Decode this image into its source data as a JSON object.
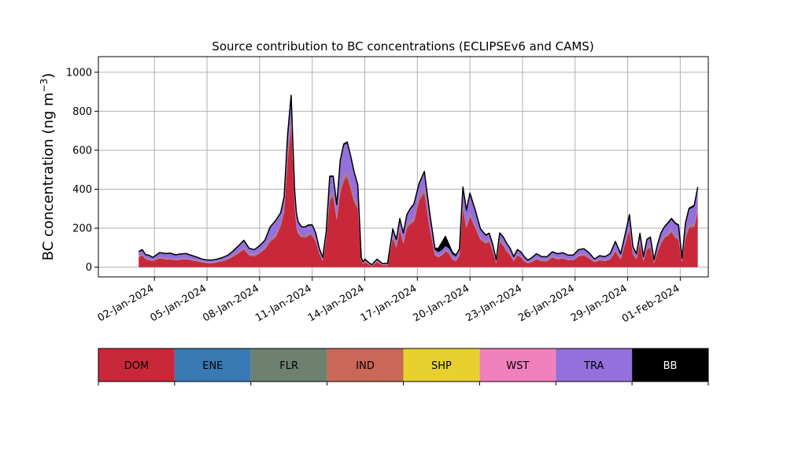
{
  "chart_data": {
    "type": "area",
    "stacked": true,
    "title": "Source contribution to BC concentrations (ECLIPSEv6 and CAMS)",
    "xlabel": "",
    "ylabel": "BC concentration (ng m",
    "ylabel_exponent": "−3",
    "ylabel_suffix": ")",
    "ylim": [
      -50,
      1080
    ],
    "yticks": [
      0,
      200,
      400,
      600,
      800,
      1000
    ],
    "xlim": [
      -3.2,
      31.6
    ],
    "xtick_days": [
      0,
      3,
      6,
      9,
      12,
      15,
      18,
      21,
      24,
      27,
      30
    ],
    "xtick_labels": [
      "02-Jan-2024",
      "05-Jan-2024",
      "08-Jan-2024",
      "11-Jan-2024",
      "14-Jan-2024",
      "17-Jan-2024",
      "20-Jan-2024",
      "23-Jan-2024",
      "26-Jan-2024",
      "29-Jan-2024",
      "01-Feb-2024"
    ],
    "grid": true,
    "legend_placement": "below",
    "sources": [
      {
        "name": "DOM",
        "color": "#c9283a",
        "text_color": "#000000"
      },
      {
        "name": "ENE",
        "color": "#3879b4",
        "text_color": "#000000"
      },
      {
        "name": "FLR",
        "color": "#6e8070",
        "text_color": "#000000"
      },
      {
        "name": "IND",
        "color": "#c96857",
        "text_color": "#000000"
      },
      {
        "name": "SHP",
        "color": "#e8d12e",
        "text_color": "#000000"
      },
      {
        "name": "WST",
        "color": "#f080bc",
        "text_color": "#000000"
      },
      {
        "name": "TRA",
        "color": "#9370db",
        "text_color": "#000000"
      },
      {
        "name": "BB",
        "color": "#000000",
        "text_color": "#ffffff"
      }
    ],
    "x": [
      -0.9,
      -0.7,
      -0.5,
      -0.3,
      -0.1,
      0.1,
      0.3,
      0.6,
      0.9,
      1.2,
      1.5,
      1.8,
      2.1,
      2.4,
      2.7,
      3.0,
      3.3,
      3.6,
      3.9,
      4.2,
      4.5,
      4.8,
      5.1,
      5.4,
      5.7,
      6.0,
      6.3,
      6.6,
      6.9,
      7.2,
      7.4,
      7.6,
      7.8,
      7.9,
      8.0,
      8.1,
      8.2,
      8.4,
      8.6,
      8.8,
      9.0,
      9.2,
      9.4,
      9.6,
      9.8,
      10.0,
      10.2,
      10.4,
      10.6,
      10.8,
      11.0,
      11.2,
      11.4,
      11.6,
      11.8,
      11.9,
      12.0,
      12.2,
      12.4,
      12.7,
      13.0,
      13.3,
      13.6,
      13.8,
      14.0,
      14.2,
      14.4,
      14.6,
      14.8,
      15.1,
      15.4,
      15.7,
      16.0,
      16.2,
      16.4,
      16.6,
      16.8,
      17.0,
      17.2,
      17.4,
      17.6,
      17.8,
      18.0,
      18.3,
      18.6,
      18.9,
      19.1,
      19.3,
      19.5,
      19.7,
      19.9,
      20.1,
      20.3,
      20.5,
      20.7,
      20.9,
      21.1,
      21.3,
      21.5,
      21.8,
      22.1,
      22.4,
      22.7,
      23.0,
      23.3,
      23.6,
      23.9,
      24.2,
      24.5,
      24.8,
      25.1,
      25.4,
      25.7,
      26.0,
      26.3,
      26.6,
      26.9,
      27.1,
      27.3,
      27.5,
      27.7,
      27.9,
      28.1,
      28.3,
      28.5,
      28.7,
      28.9,
      29.1,
      29.3,
      29.5,
      29.7,
      29.9,
      30.1,
      30.3,
      30.5,
      30.8,
      31.0
    ],
    "series": [
      {
        "name": "DOM",
        "values": [
          50,
          60,
          40,
          35,
          30,
          40,
          45,
          40,
          40,
          35,
          38,
          40,
          35,
          30,
          25,
          20,
          20,
          25,
          30,
          40,
          55,
          70,
          90,
          60,
          55,
          70,
          90,
          130,
          150,
          210,
          280,
          550,
          720,
          520,
          310,
          200,
          170,
          150,
          150,
          160,
          160,
          130,
          70,
          30,
          140,
          340,
          360,
          240,
          380,
          440,
          460,
          400,
          330,
          300,
          30,
          15,
          25,
          15,
          5,
          25,
          10,
          10,
          150,
          100,
          190,
          120,
          200,
          220,
          230,
          340,
          380,
          200,
          60,
          50,
          60,
          80,
          70,
          40,
          30,
          60,
          300,
          200,
          260,
          200,
          140,
          120,
          130,
          80,
          20,
          130,
          110,
          80,
          60,
          30,
          60,
          50,
          30,
          20,
          25,
          40,
          30,
          30,
          50,
          40,
          45,
          35,
          35,
          55,
          60,
          45,
          25,
          35,
          30,
          40,
          80,
          40,
          130,
          190,
          65,
          40,
          120,
          30,
          90,
          100,
          20,
          75,
          120,
          150,
          160,
          180,
          150,
          140,
          25,
          150,
          200,
          205,
          290
        ]
      },
      {
        "name": "ENE",
        "values": [
          2,
          2,
          2,
          2,
          2,
          2,
          2,
          2,
          2,
          2,
          2,
          2,
          2,
          2,
          2,
          2,
          2,
          2,
          2,
          2,
          2,
          3,
          3,
          3,
          3,
          3,
          4,
          4,
          4,
          4,
          5,
          7,
          8,
          6,
          5,
          4,
          4,
          4,
          4,
          4,
          4,
          4,
          3,
          2,
          4,
          6,
          6,
          5,
          6,
          7,
          7,
          6,
          6,
          5,
          2,
          1,
          2,
          1,
          1,
          2,
          1,
          1,
          3,
          2,
          4,
          3,
          4,
          4,
          4,
          6,
          6,
          4,
          2,
          2,
          2,
          2,
          2,
          2,
          2,
          2,
          5,
          4,
          5,
          4,
          3,
          3,
          3,
          2,
          1,
          3,
          3,
          2,
          2,
          2,
          2,
          2,
          2,
          1,
          2,
          2,
          2,
          2,
          2,
          2,
          2,
          2,
          2,
          2,
          2,
          2,
          2,
          2,
          2,
          2,
          3,
          2,
          3,
          4,
          2,
          2,
          3,
          2,
          3,
          3,
          1,
          2,
          3,
          3,
          3,
          4,
          3,
          3,
          1,
          3,
          4,
          4,
          5
        ]
      },
      {
        "name": "FLR",
        "values": [
          0,
          0,
          0,
          0,
          0,
          0,
          0,
          0,
          0,
          0,
          0,
          0,
          0,
          0,
          0,
          0,
          0,
          0,
          0,
          0,
          0,
          0,
          0,
          0,
          0,
          0,
          0,
          0,
          0,
          0,
          0,
          0,
          0,
          0,
          0,
          0,
          0,
          0,
          0,
          0,
          0,
          0,
          0,
          0,
          0,
          0,
          0,
          0,
          0,
          0,
          0,
          0,
          0,
          0,
          0,
          0,
          0,
          0,
          0,
          0,
          0,
          0,
          0,
          0,
          0,
          0,
          0,
          0,
          0,
          0,
          0,
          0,
          0,
          0,
          0,
          0,
          0,
          0,
          0,
          0,
          0,
          0,
          0,
          0,
          0,
          0,
          0,
          0,
          0,
          0,
          0,
          0,
          0,
          0,
          0,
          0,
          0,
          0,
          0,
          0,
          0,
          0,
          0,
          0,
          0,
          0,
          0,
          0,
          0,
          0,
          0,
          0,
          0,
          0,
          0,
          0,
          0,
          0,
          0,
          0,
          0,
          0,
          0,
          0,
          0,
          0,
          0,
          0,
          0,
          0,
          0,
          0,
          0,
          0,
          0,
          0,
          0
        ]
      },
      {
        "name": "IND",
        "values": [
          3,
          3,
          3,
          3,
          3,
          3,
          3,
          3,
          3,
          3,
          3,
          3,
          3,
          3,
          2,
          2,
          2,
          2,
          3,
          3,
          4,
          5,
          6,
          4,
          4,
          5,
          6,
          8,
          9,
          11,
          12,
          20,
          25,
          18,
          12,
          9,
          8,
          8,
          8,
          8,
          8,
          7,
          4,
          3,
          7,
          15,
          15,
          11,
          16,
          18,
          18,
          16,
          14,
          12,
          3,
          2,
          3,
          2,
          1,
          3,
          2,
          2,
          8,
          6,
          10,
          7,
          10,
          11,
          12,
          15,
          16,
          10,
          4,
          4,
          4,
          5,
          4,
          3,
          3,
          4,
          13,
          9,
          12,
          9,
          7,
          6,
          6,
          5,
          2,
          7,
          6,
          5,
          4,
          3,
          4,
          3,
          3,
          2,
          2,
          3,
          3,
          3,
          3,
          3,
          3,
          3,
          3,
          4,
          4,
          3,
          2,
          3,
          3,
          3,
          5,
          3,
          7,
          9,
          4,
          3,
          6,
          3,
          5,
          6,
          2,
          4,
          7,
          8,
          8,
          9,
          8,
          7,
          2,
          8,
          10,
          10,
          12
        ]
      },
      {
        "name": "SHP",
        "values": [
          0,
          0,
          0,
          0,
          0,
          0,
          0,
          0,
          0,
          0,
          0,
          0,
          0,
          0,
          0,
          0,
          0,
          0,
          0,
          0,
          0,
          0,
          0,
          0,
          0,
          0,
          0,
          0,
          0,
          0,
          0,
          0,
          0,
          0,
          0,
          0,
          0,
          0,
          0,
          0,
          0,
          0,
          0,
          0,
          0,
          0,
          0,
          0,
          0,
          0,
          0,
          0,
          0,
          0,
          0,
          0,
          0,
          0,
          0,
          0,
          0,
          0,
          0,
          0,
          0,
          0,
          0,
          0,
          0,
          0,
          0,
          0,
          0,
          0,
          0,
          0,
          0,
          0,
          0,
          0,
          0,
          0,
          0,
          0,
          0,
          0,
          0,
          0,
          0,
          0,
          0,
          0,
          0,
          0,
          0,
          0,
          0,
          0,
          0,
          0,
          0,
          0,
          0,
          0,
          0,
          0,
          0,
          0,
          0,
          0,
          0,
          0,
          0,
          0,
          0,
          0,
          0,
          0,
          0,
          0,
          0,
          0,
          0,
          0,
          0,
          0,
          0,
          0,
          0,
          0,
          0,
          0,
          0,
          0,
          0,
          0,
          0
        ]
      },
      {
        "name": "WST",
        "values": [
          1,
          1,
          1,
          1,
          1,
          1,
          1,
          1,
          1,
          1,
          1,
          1,
          1,
          1,
          1,
          1,
          1,
          1,
          1,
          1,
          1,
          1,
          1,
          1,
          1,
          1,
          1,
          1,
          1,
          1,
          1,
          2,
          2,
          2,
          1,
          1,
          1,
          1,
          1,
          1,
          1,
          1,
          1,
          1,
          1,
          1,
          1,
          1,
          1,
          1,
          1,
          1,
          1,
          1,
          1,
          1,
          1,
          1,
          1,
          1,
          1,
          1,
          1,
          1,
          1,
          1,
          1,
          1,
          1,
          1,
          1,
          1,
          1,
          1,
          1,
          1,
          1,
          1,
          1,
          1,
          1,
          1,
          1,
          1,
          1,
          1,
          1,
          1,
          1,
          1,
          1,
          1,
          1,
          1,
          1,
          1,
          1,
          1,
          1,
          1,
          1,
          1,
          1,
          1,
          1,
          1,
          1,
          1,
          1,
          1,
          1,
          1,
          1,
          1,
          1,
          1,
          1,
          1,
          1,
          1,
          1,
          1,
          1,
          1,
          1,
          1,
          1,
          1,
          1,
          1,
          1,
          1,
          1,
          1,
          1,
          1,
          1
        ]
      },
      {
        "name": "TRA",
        "values": [
          22,
          22,
          16,
          18,
          12,
          14,
          22,
          22,
          24,
          20,
          22,
          22,
          18,
          14,
          10,
          10,
          10,
          10,
          12,
          14,
          20,
          28,
          35,
          26,
          24,
          28,
          34,
          60,
          70,
          50,
          60,
          100,
          120,
          80,
          60,
          60,
          45,
          40,
          40,
          40,
          40,
          30,
          16,
          12,
          28,
          100,
          80,
          60,
          140,
          160,
          150,
          140,
          130,
          100,
          12,
          6,
          8,
          6,
          3,
          8,
          4,
          4,
          30,
          30,
          40,
          40,
          50,
          60,
          70,
          60,
          80,
          60,
          20,
          20,
          20,
          20,
          20,
          20,
          18,
          20,
          80,
          70,
          90,
          70,
          40,
          30,
          30,
          25,
          12,
          30,
          30,
          30,
          25,
          15,
          20,
          20,
          15,
          10,
          15,
          20,
          15,
          15,
          20,
          20,
          20,
          18,
          18,
          25,
          25,
          20,
          10,
          15,
          15,
          20,
          40,
          20,
          40,
          60,
          30,
          20,
          40,
          15,
          40,
          40,
          12,
          30,
          40,
          40,
          50,
          50,
          60,
          60,
          15,
          60,
          80,
          90,
          95
        ]
      },
      {
        "name": "BB",
        "values": [
          2,
          2,
          2,
          2,
          2,
          2,
          2,
          2,
          2,
          2,
          2,
          2,
          2,
          2,
          2,
          2,
          2,
          2,
          2,
          2,
          2,
          3,
          3,
          3,
          3,
          3,
          3,
          3,
          4,
          3,
          4,
          5,
          7,
          5,
          4,
          4,
          4,
          4,
          4,
          4,
          4,
          4,
          3,
          2,
          3,
          5,
          5,
          4,
          6,
          6,
          6,
          6,
          5,
          5,
          2,
          1,
          2,
          1,
          1,
          2,
          1,
          1,
          4,
          3,
          5,
          4,
          5,
          5,
          6,
          8,
          8,
          6,
          10,
          20,
          40,
          50,
          20,
          10,
          8,
          6,
          12,
          10,
          12,
          10,
          6,
          5,
          5,
          4,
          2,
          5,
          5,
          4,
          4,
          3,
          3,
          3,
          3,
          2,
          2,
          3,
          3,
          3,
          3,
          3,
          3,
          3,
          3,
          3,
          3,
          3,
          2,
          3,
          3,
          3,
          3,
          3,
          5,
          6,
          3,
          3,
          4,
          3,
          4,
          4,
          2,
          4,
          5,
          6,
          6,
          6,
          6,
          6,
          2,
          6,
          7,
          8,
          8
        ]
      }
    ]
  }
}
